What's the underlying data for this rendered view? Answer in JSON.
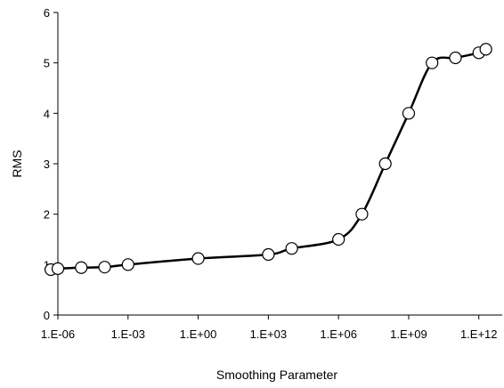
{
  "chart_data": {
    "type": "line",
    "title": "",
    "xlabel": "Smoothing Parameter",
    "ylabel": "RMS",
    "x_scale": "log",
    "xlim": [
      1e-06,
      10000000000000.0
    ],
    "ylim": [
      0,
      6
    ],
    "x_ticks": [
      {
        "value": 1e-06,
        "label": "1.E-06"
      },
      {
        "value": 0.001,
        "label": "1.E-03"
      },
      {
        "value": 1,
        "label": "1.E+00"
      },
      {
        "value": 1000.0,
        "label": "1.E+03"
      },
      {
        "value": 1000000.0,
        "label": "1.E+06"
      },
      {
        "value": 1000000000.0,
        "label": "1.E+09"
      },
      {
        "value": 1000000000000.0,
        "label": "1.E+12"
      }
    ],
    "y_ticks": [
      {
        "value": 0,
        "label": "0"
      },
      {
        "value": 1,
        "label": "1"
      },
      {
        "value": 2,
        "label": "2"
      },
      {
        "value": 3,
        "label": "3"
      },
      {
        "value": 4,
        "label": "4"
      },
      {
        "value": 5,
        "label": "5"
      },
      {
        "value": 6,
        "label": "6"
      }
    ],
    "grid": false,
    "legend": "none",
    "series": [
      {
        "x": [
          5e-07,
          1e-06,
          1e-05,
          0.0001,
          0.001,
          1,
          1000,
          10000,
          1000000.0,
          10000000.0,
          100000000.0,
          1000000000.0,
          10000000000.0,
          100000000000.0,
          1000000000000.0,
          2000000000000.0
        ],
        "y": [
          0.9,
          0.92,
          0.94,
          0.95,
          1.0,
          1.12,
          1.2,
          1.32,
          1.5,
          2.0,
          3.0,
          4.0,
          5.0,
          5.1,
          5.2,
          5.27
        ],
        "line_color": "#000000",
        "marker": "circle",
        "marker_fill": "#ffffff"
      }
    ]
  }
}
